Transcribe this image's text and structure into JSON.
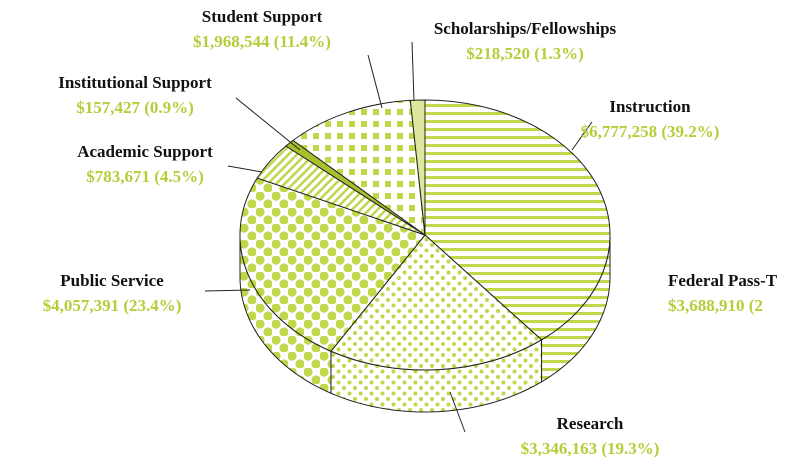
{
  "chart_data": {
    "type": "pie",
    "categories": [
      "Instruction",
      "Research",
      "Public Service",
      "Academic Support",
      "Institutional Support",
      "Student Support",
      "Scholarships/Fellowships"
    ],
    "values": [
      6777258,
      3346163,
      4057391,
      783671,
      157427,
      1968544,
      218520
    ],
    "value_labels": [
      "$6,777,258  (39.2%)",
      "$3,346,163  (19.3%)",
      "$4,057,391  (23.4%)",
      "$783,671  (4.5%)",
      "$157,427  (0.9%)",
      "$1,968,544  (11.4%)",
      "$218,520  (1.3%)"
    ],
    "color": "#c2d64a",
    "annotations": [
      "Federal Pass-T",
      "$3,688,910  (2"
    ]
  }
}
